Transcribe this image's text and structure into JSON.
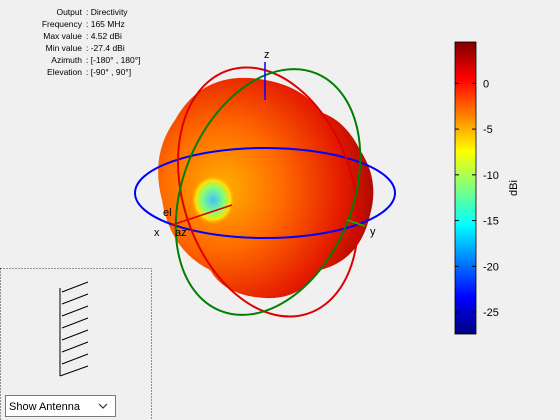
{
  "info": [
    {
      "label": "Output",
      "value": ": Directivity"
    },
    {
      "label": "Frequency",
      "value": ": 165 MHz"
    },
    {
      "label": "Max value",
      "value": ": 4.52 dBi"
    },
    {
      "label": "Min value",
      "value": ": -27.4 dBi"
    },
    {
      "label": "Azimuth",
      "value": ": [-180° , 180°]"
    },
    {
      "label": "Elevation",
      "value": ": [-90° , 90°]"
    }
  ],
  "axes": {
    "x": "x",
    "y": "y",
    "z": "z",
    "az": "az",
    "el": "el"
  },
  "colorbar": {
    "label": "dBi",
    "lim": [
      -27.4,
      4.52
    ],
    "ticks": [
      -25,
      -20,
      -15,
      -10,
      -5,
      0
    ]
  },
  "dropdown": {
    "selected": "Show Antenna"
  }
}
